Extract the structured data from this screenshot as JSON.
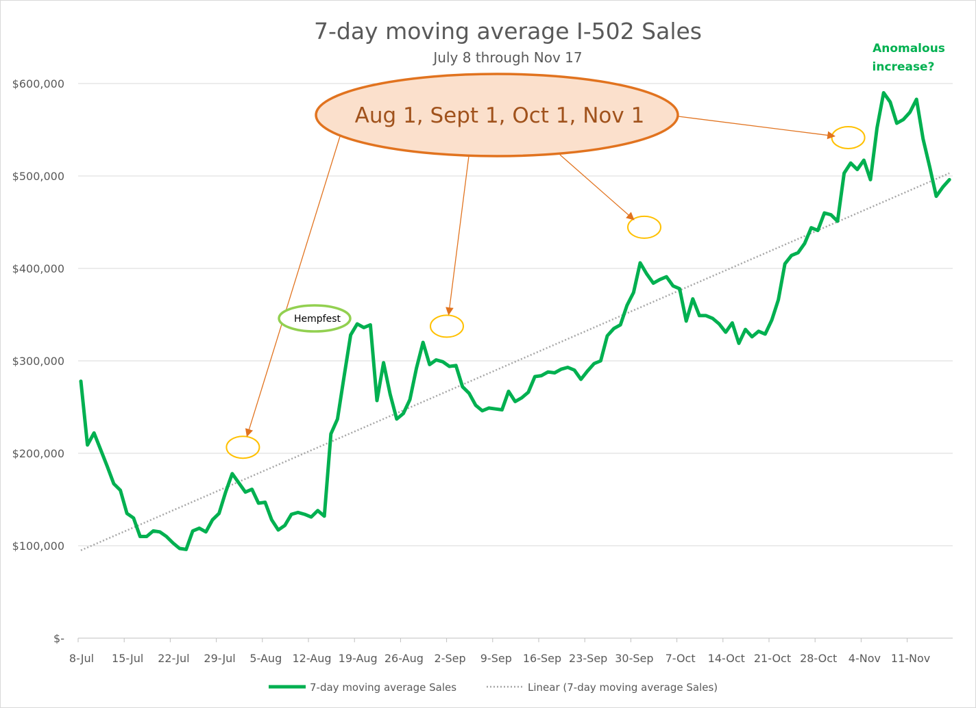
{
  "chart_data": {
    "type": "line",
    "title": "7-day moving average I-502 Sales",
    "subtitle": "July 8 through Nov 17",
    "ylim": [
      0,
      600000
    ],
    "y_ticks": [
      {
        "value": 0,
        "label": "$-"
      },
      {
        "value": 100000,
        "label": "$100,000"
      },
      {
        "value": 200000,
        "label": "$200,000"
      },
      {
        "value": 300000,
        "label": "$300,000"
      },
      {
        "value": 400000,
        "label": "$400,000"
      },
      {
        "value": 500000,
        "label": "$500,000"
      },
      {
        "value": 600000,
        "label": "$600,000"
      }
    ],
    "x_tick_labels": [
      "8-Jul",
      "15-Jul",
      "22-Jul",
      "29-Jul",
      "5-Aug",
      "12-Aug",
      "19-Aug",
      "26-Aug",
      "2-Sep",
      "9-Sep",
      "16-Sep",
      "23-Sep",
      "30-Sep",
      "7-Oct",
      "14-Oct",
      "21-Oct",
      "28-Oct",
      "4-Nov",
      "11-Nov"
    ],
    "x_start": "2014-07-08",
    "x_end": "2014-11-17",
    "gridlines": true,
    "legend_position": "bottom",
    "series": [
      {
        "name": "7-day moving average Sales",
        "color": "#00b050",
        "values": [
          278000,
          209000,
          222000,
          204000,
          186000,
          167000,
          160000,
          135000,
          130000,
          110000,
          110000,
          116000,
          115000,
          110000,
          103000,
          97000,
          96000,
          116000,
          119000,
          115000,
          128000,
          135000,
          158000,
          178000,
          168000,
          158000,
          161000,
          146000,
          147000,
          128000,
          117000,
          122000,
          134000,
          136000,
          134000,
          131000,
          138000,
          132000,
          221000,
          237000,
          283000,
          328000,
          340000,
          336000,
          339000,
          257000,
          298000,
          264000,
          237000,
          243000,
          258000,
          292000,
          320000,
          296000,
          301000,
          299000,
          294000,
          295000,
          272000,
          265000,
          252000,
          246000,
          249000,
          248000,
          247000,
          267000,
          256000,
          260000,
          266000,
          283000,
          284000,
          288000,
          287000,
          291000,
          293000,
          290000,
          280000,
          289000,
          297000,
          300000,
          327000,
          335000,
          339000,
          360000,
          374000,
          406000,
          394000,
          384000,
          388000,
          391000,
          381000,
          378000,
          343000,
          367000,
          349000,
          349000,
          346000,
          340000,
          331000,
          341000,
          319000,
          334000,
          326000,
          332000,
          329000,
          344000,
          366000,
          405000,
          414000,
          417000,
          427000,
          444000,
          441000,
          460000,
          458000,
          451000,
          503000,
          514000,
          507000,
          517000,
          496000,
          552000,
          590000,
          580000,
          557000,
          561000,
          569000,
          583000,
          540000,
          510000,
          478000,
          488000,
          496000
        ]
      },
      {
        "name": "Linear (7-day moving average Sales)",
        "color": "#a6a6a6",
        "style": "dotted",
        "trend_start": 95000,
        "trend_end": 503000
      }
    ],
    "annotations": {
      "callout": "Aug 1,  Sept 1,  Oct 1,  Nov 1",
      "event_label": "Hempfest",
      "note": "Anomalous increase?",
      "marked_dates": [
        "2014-08-01",
        "2014-09-01",
        "2014-10-01",
        "2014-11-01"
      ]
    }
  },
  "colors": {
    "sales_line": "#00b050",
    "trend_line": "#a6a6a6",
    "callout_fill": "#fbe0cc",
    "callout_border": "#e1731f",
    "arrow": "#e1731f",
    "marker_ring": "#ffc000",
    "hempfest_ring": "#92d050"
  }
}
